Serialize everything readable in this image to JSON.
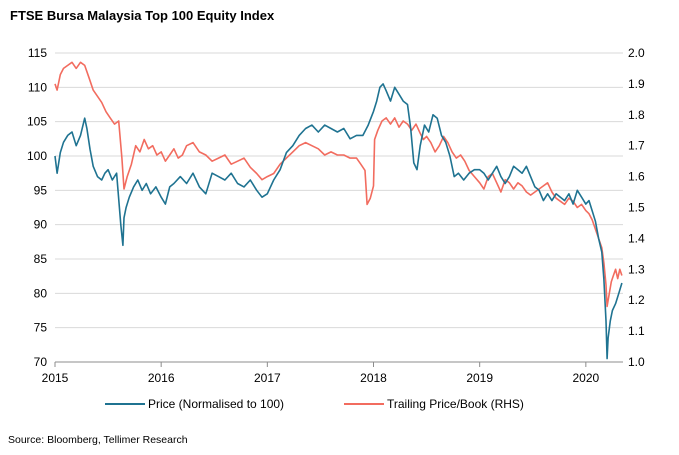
{
  "chart_data": {
    "type": "line",
    "title": "FTSE Bursa Malaysia Top 100 Equity Index",
    "source": "Source: Bloomberg, Tellimer Research",
    "x_ticks": [
      "2015",
      "2016",
      "2017",
      "2018",
      "2019",
      "2020"
    ],
    "x_range": [
      2015.0,
      2020.35
    ],
    "ylim_left": [
      70,
      115
    ],
    "y_ticks_left": [
      "70",
      "75",
      "80",
      "85",
      "90",
      "95",
      "100",
      "105",
      "110",
      "115"
    ],
    "ylim_right": [
      1.0,
      2.0
    ],
    "y_ticks_right": [
      "1.0",
      "1.1",
      "1.2",
      "1.3",
      "1.4",
      "1.5",
      "1.6",
      "1.7",
      "1.8",
      "1.9",
      "2.0"
    ],
    "grid": true,
    "legend_position": "bottom",
    "colors": {
      "price": "#1f7391",
      "pb": "#f26c5f",
      "grid": "#d9d9d9",
      "axis": "#8c8c8c"
    },
    "series": [
      {
        "name": "Price (Normalised to 100)",
        "axis": "left",
        "x": [
          2015.0,
          2015.02,
          2015.05,
          2015.08,
          2015.12,
          2015.16,
          2015.2,
          2015.24,
          2015.28,
          2015.3,
          2015.33,
          2015.36,
          2015.4,
          2015.44,
          2015.47,
          2015.5,
          2015.54,
          2015.58,
          2015.62,
          2015.64,
          2015.65,
          2015.67,
          2015.7,
          2015.74,
          2015.78,
          2015.82,
          2015.86,
          2015.9,
          2015.95,
          2016.0,
          2016.04,
          2016.08,
          2016.12,
          2016.18,
          2016.24,
          2016.3,
          2016.36,
          2016.42,
          2016.48,
          2016.54,
          2016.6,
          2016.66,
          2016.72,
          2016.78,
          2016.84,
          2016.9,
          2016.95,
          2017.0,
          2017.06,
          2017.12,
          2017.18,
          2017.24,
          2017.3,
          2017.36,
          2017.42,
          2017.48,
          2017.54,
          2017.6,
          2017.66,
          2017.72,
          2017.78,
          2017.84,
          2017.9,
          2017.95,
          2018.0,
          2018.03,
          2018.06,
          2018.09,
          2018.12,
          2018.16,
          2018.2,
          2018.24,
          2018.28,
          2018.32,
          2018.35,
          2018.38,
          2018.41,
          2018.44,
          2018.48,
          2018.52,
          2018.56,
          2018.6,
          2018.64,
          2018.68,
          2018.72,
          2018.76,
          2018.8,
          2018.85,
          2018.9,
          2018.95,
          2019.0,
          2019.04,
          2019.08,
          2019.12,
          2019.16,
          2019.2,
          2019.24,
          2019.28,
          2019.32,
          2019.36,
          2019.4,
          2019.44,
          2019.48,
          2019.52,
          2019.56,
          2019.6,
          2019.64,
          2019.68,
          2019.72,
          2019.76,
          2019.8,
          2019.84,
          2019.88,
          2019.92,
          2019.96,
          2020.0,
          2020.03,
          2020.06,
          2020.09,
          2020.12,
          2020.15,
          2020.17,
          2020.19,
          2020.2,
          2020.21,
          2020.23,
          2020.25,
          2020.28,
          2020.31,
          2020.34
        ],
        "values": [
          100.0,
          97.5,
          100.5,
          102.0,
          103.0,
          103.5,
          101.5,
          103.0,
          105.5,
          104.0,
          101.0,
          98.5,
          97.0,
          96.5,
          97.5,
          98.0,
          96.5,
          97.5,
          90.0,
          87.0,
          91.0,
          92.5,
          94.0,
          95.5,
          96.5,
          95.0,
          96.0,
          94.5,
          95.5,
          94.0,
          93.0,
          95.5,
          96.0,
          97.0,
          96.0,
          97.5,
          95.5,
          94.5,
          97.5,
          97.0,
          96.5,
          97.5,
          96.0,
          95.5,
          96.5,
          95.0,
          94.0,
          94.5,
          96.5,
          98.0,
          100.5,
          101.5,
          103.0,
          104.0,
          104.5,
          103.5,
          104.5,
          104.0,
          103.5,
          104.0,
          102.5,
          103.0,
          103.0,
          104.5,
          106.5,
          108.0,
          110.0,
          110.5,
          109.5,
          108.0,
          110.0,
          109.0,
          108.0,
          107.5,
          104.0,
          99.0,
          98.0,
          101.5,
          104.5,
          103.5,
          106.0,
          105.5,
          103.0,
          102.0,
          100.0,
          97.0,
          97.5,
          96.5,
          97.5,
          98.0,
          98.0,
          97.5,
          96.5,
          97.5,
          98.5,
          97.0,
          96.0,
          97.0,
          98.5,
          98.0,
          97.5,
          98.5,
          97.0,
          95.5,
          95.0,
          93.5,
          94.5,
          93.5,
          94.5,
          94.0,
          93.5,
          94.5,
          93.0,
          95.0,
          94.0,
          93.0,
          93.5,
          92.0,
          90.5,
          88.0,
          86.0,
          82.0,
          76.0,
          70.5,
          73.5,
          76.0,
          77.5,
          78.5,
          80.0,
          81.5
        ]
      },
      {
        "name": "Trailing Price/Book (RHS)",
        "axis": "right",
        "x": [
          2015.0,
          2015.02,
          2015.05,
          2015.08,
          2015.12,
          2015.16,
          2015.2,
          2015.24,
          2015.28,
          2015.32,
          2015.36,
          2015.4,
          2015.44,
          2015.48,
          2015.52,
          2015.56,
          2015.6,
          2015.63,
          2015.65,
          2015.68,
          2015.72,
          2015.76,
          2015.8,
          2015.84,
          2015.88,
          2015.92,
          2015.96,
          2016.0,
          2016.04,
          2016.08,
          2016.12,
          2016.16,
          2016.2,
          2016.24,
          2016.3,
          2016.36,
          2016.42,
          2016.48,
          2016.54,
          2016.6,
          2016.66,
          2016.72,
          2016.78,
          2016.84,
          2016.9,
          2016.95,
          2017.0,
          2017.06,
          2017.12,
          2017.18,
          2017.24,
          2017.3,
          2017.36,
          2017.42,
          2017.48,
          2017.54,
          2017.6,
          2017.66,
          2017.72,
          2017.78,
          2017.84,
          2017.88,
          2017.92,
          2017.94,
          2017.97,
          2018.0,
          2018.01,
          2018.04,
          2018.08,
          2018.12,
          2018.16,
          2018.2,
          2018.24,
          2018.28,
          2018.32,
          2018.36,
          2018.4,
          2018.44,
          2018.47,
          2018.5,
          2018.54,
          2018.58,
          2018.62,
          2018.66,
          2018.7,
          2018.74,
          2018.78,
          2018.82,
          2018.86,
          2018.9,
          2018.95,
          2019.0,
          2019.04,
          2019.08,
          2019.12,
          2019.16,
          2019.2,
          2019.24,
          2019.28,
          2019.32,
          2019.36,
          2019.4,
          2019.44,
          2019.48,
          2019.52,
          2019.56,
          2019.6,
          2019.64,
          2019.68,
          2019.72,
          2019.76,
          2019.8,
          2019.84,
          2019.88,
          2019.92,
          2019.96,
          2020.0,
          2020.03,
          2020.06,
          2020.09,
          2020.12,
          2020.15,
          2020.17,
          2020.19,
          2020.2,
          2020.22,
          2020.24,
          2020.26,
          2020.28,
          2020.3,
          2020.32,
          2020.34
        ],
        "values": [
          1.9,
          1.88,
          1.93,
          1.95,
          1.96,
          1.97,
          1.95,
          1.97,
          1.96,
          1.92,
          1.88,
          1.86,
          1.84,
          1.81,
          1.79,
          1.77,
          1.78,
          1.66,
          1.56,
          1.6,
          1.64,
          1.7,
          1.68,
          1.72,
          1.69,
          1.7,
          1.67,
          1.68,
          1.65,
          1.67,
          1.69,
          1.66,
          1.67,
          1.7,
          1.71,
          1.68,
          1.67,
          1.65,
          1.66,
          1.67,
          1.64,
          1.65,
          1.66,
          1.63,
          1.61,
          1.59,
          1.6,
          1.61,
          1.64,
          1.66,
          1.68,
          1.7,
          1.71,
          1.7,
          1.69,
          1.67,
          1.68,
          1.67,
          1.67,
          1.66,
          1.66,
          1.64,
          1.62,
          1.51,
          1.53,
          1.57,
          1.72,
          1.75,
          1.78,
          1.79,
          1.77,
          1.79,
          1.76,
          1.78,
          1.77,
          1.75,
          1.77,
          1.74,
          1.72,
          1.73,
          1.71,
          1.68,
          1.7,
          1.73,
          1.71,
          1.68,
          1.66,
          1.67,
          1.65,
          1.62,
          1.6,
          1.58,
          1.56,
          1.6,
          1.61,
          1.58,
          1.55,
          1.59,
          1.58,
          1.56,
          1.58,
          1.57,
          1.55,
          1.54,
          1.55,
          1.56,
          1.57,
          1.58,
          1.55,
          1.53,
          1.52,
          1.51,
          1.53,
          1.52,
          1.5,
          1.51,
          1.49,
          1.48,
          1.46,
          1.43,
          1.4,
          1.37,
          1.32,
          1.25,
          1.18,
          1.22,
          1.26,
          1.28,
          1.3,
          1.27,
          1.3,
          1.28
        ]
      }
    ]
  }
}
